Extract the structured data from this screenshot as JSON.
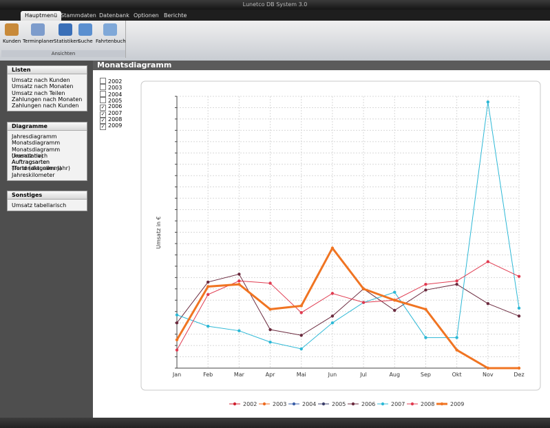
{
  "window": {
    "title": "Lunetco DB System 3.0"
  },
  "tabs": [
    "Hauptmenü",
    "Stammdaten",
    "Datenbank",
    "Optionen",
    "Berichte"
  ],
  "ribbon": {
    "buttons": [
      "Kunden",
      "Terminplaner",
      "Statistiken",
      "Suche",
      "Fahrtenbuch"
    ],
    "group": "Ansichten"
  },
  "sidebar": [
    {
      "title": "Listen",
      "items": [
        "Umsatz nach Kunden",
        "Umsatz nach Monaten",
        "Umsatz nach Teilen",
        "Zahlungen nach Monaten",
        "Zahlungen nach Kunden"
      ]
    },
    {
      "title": "Diagramme",
      "items": [
        "Jahresdiagramm",
        "Monatsdiagramm",
        "Monatsdiagramm (kumulativ)",
        "Umsatz nach Auftragsarten",
        "Auftragsarten (Tortendiagramm)",
        "Trend (aktuelles Jahr)",
        "Jahreskilometer"
      ]
    },
    {
      "title": "Sonstiges",
      "items": [
        "Umsatz tabellarisch"
      ]
    }
  ],
  "page_title": "Monatsdiagramm",
  "year_filter": [
    {
      "label": "2002",
      "checked": false
    },
    {
      "label": "2003",
      "checked": false
    },
    {
      "label": "2004",
      "checked": false
    },
    {
      "label": "2005",
      "checked": false
    },
    {
      "label": "2006",
      "checked": true
    },
    {
      "label": "2007",
      "checked": true
    },
    {
      "label": "2008",
      "checked": true
    },
    {
      "label": "2009",
      "checked": true
    }
  ],
  "chart_data": {
    "type": "line",
    "y_label": "Umsatz in €",
    "categories": [
      "Jan",
      "Feb",
      "Mar",
      "Apr",
      "Mai",
      "Jun",
      "Jul",
      "Aug",
      "Sep",
      "Okt",
      "Nov",
      "Dez"
    ],
    "ylim": [
      0,
      24
    ],
    "yticks": [
      0,
      1,
      2,
      3,
      4,
      5,
      6,
      7,
      8,
      9,
      10,
      11,
      12,
      13,
      14,
      15,
      16,
      17,
      18,
      19,
      20,
      21,
      22,
      23,
      24
    ],
    "grid": true,
    "series": [
      {
        "name": "2002",
        "color": "#d0202f",
        "values": [
          null,
          null,
          null,
          null,
          null,
          null,
          null,
          null,
          null,
          null,
          null,
          null
        ]
      },
      {
        "name": "2003",
        "color": "#ee6a1f",
        "values": [
          null,
          null,
          null,
          null,
          null,
          null,
          null,
          null,
          null,
          null,
          null,
          null
        ]
      },
      {
        "name": "2004",
        "color": "#3a5fa8",
        "values": [
          null,
          null,
          null,
          null,
          null,
          null,
          null,
          null,
          null,
          null,
          null,
          null
        ]
      },
      {
        "name": "2005",
        "color": "#3b3f6b",
        "values": [
          null,
          null,
          null,
          null,
          null,
          null,
          null,
          null,
          null,
          null,
          null,
          null
        ]
      },
      {
        "name": "2006",
        "color": "#6b2a3e",
        "values": [
          4.0,
          7.6,
          8.3,
          3.4,
          2.9,
          4.6,
          7.0,
          5.1,
          6.9,
          7.4,
          5.7,
          4.6
        ]
      },
      {
        "name": "2007",
        "color": "#2cb8d6",
        "values": [
          4.7,
          3.7,
          3.3,
          2.3,
          1.7,
          4.0,
          5.8,
          6.7,
          2.7,
          2.7,
          23.5,
          5.3
        ]
      },
      {
        "name": "2008",
        "color": "#e03a4f",
        "values": [
          1.6,
          6.5,
          7.7,
          7.5,
          4.9,
          6.6,
          5.8,
          6.0,
          7.4,
          7.7,
          9.4,
          8.1
        ]
      },
      {
        "name": "2009",
        "color": "#f07422",
        "width": 3,
        "values": [
          2.5,
          7.2,
          7.4,
          5.2,
          5.5,
          10.6,
          7.0,
          6.0,
          5.2,
          1.6,
          0,
          0
        ]
      }
    ]
  }
}
